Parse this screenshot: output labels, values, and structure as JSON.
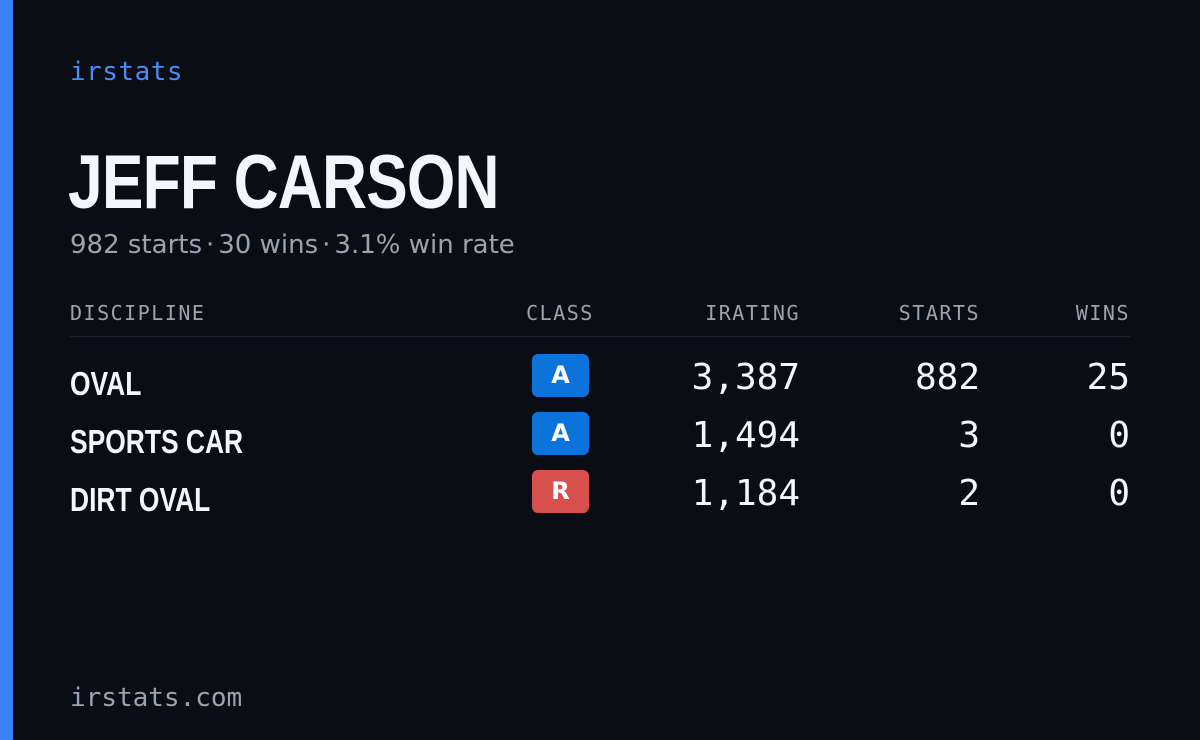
{
  "colors": {
    "background": "#0a0d14",
    "accent": "#3b82f6",
    "class_a": "#0b73d9",
    "class_r": "#d8504d",
    "muted_text": "#9aa3b2",
    "primary_text": "#f4f6fa"
  },
  "brand": "irstats",
  "driver": {
    "name": "JEFF CARSON",
    "summary": {
      "starts": "982 starts",
      "wins": "30 wins",
      "win_rate": "3.1% win rate",
      "separator": "·"
    }
  },
  "table": {
    "headers": {
      "discipline": "DISCIPLINE",
      "class": "CLASS",
      "irating": "IRATING",
      "starts": "STARTS",
      "wins": "WINS"
    },
    "rows": [
      {
        "discipline": "OVAL",
        "class": "A",
        "class_color": "#0b73d9",
        "irating": "3,387",
        "starts": "882",
        "wins": "25"
      },
      {
        "discipline": "SPORTS CAR",
        "class": "A",
        "class_color": "#0b73d9",
        "irating": "1,494",
        "starts": "3",
        "wins": "0"
      },
      {
        "discipline": "DIRT OVAL",
        "class": "R",
        "class_color": "#d8504d",
        "irating": "1,184",
        "starts": "2",
        "wins": "0"
      }
    ]
  },
  "footer": {
    "url": "irstats.com"
  }
}
